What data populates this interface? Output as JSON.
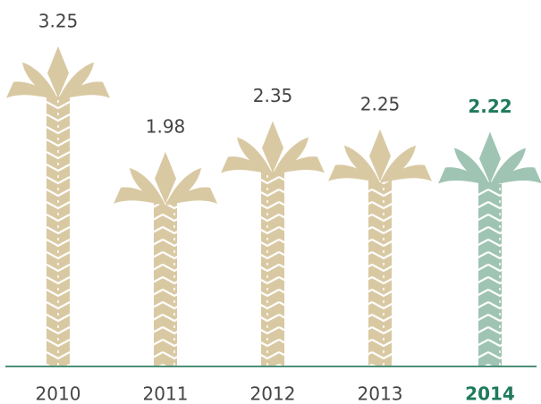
{
  "chart_data": {
    "type": "pictorial-bar",
    "categories": [
      "2010",
      "2011",
      "2012",
      "2013",
      "2014"
    ],
    "values": [
      3.25,
      1.98,
      2.35,
      2.25,
      2.22
    ],
    "colors": [
      "#d9c9a3",
      "#d9c9a3",
      "#d9c9a3",
      "#d9c9a3",
      "#9fc4b4"
    ],
    "highlight_index": 4,
    "highlight_color": "#1f7a5c",
    "label_color": "#444444",
    "axis_color": "#4d8f78"
  }
}
